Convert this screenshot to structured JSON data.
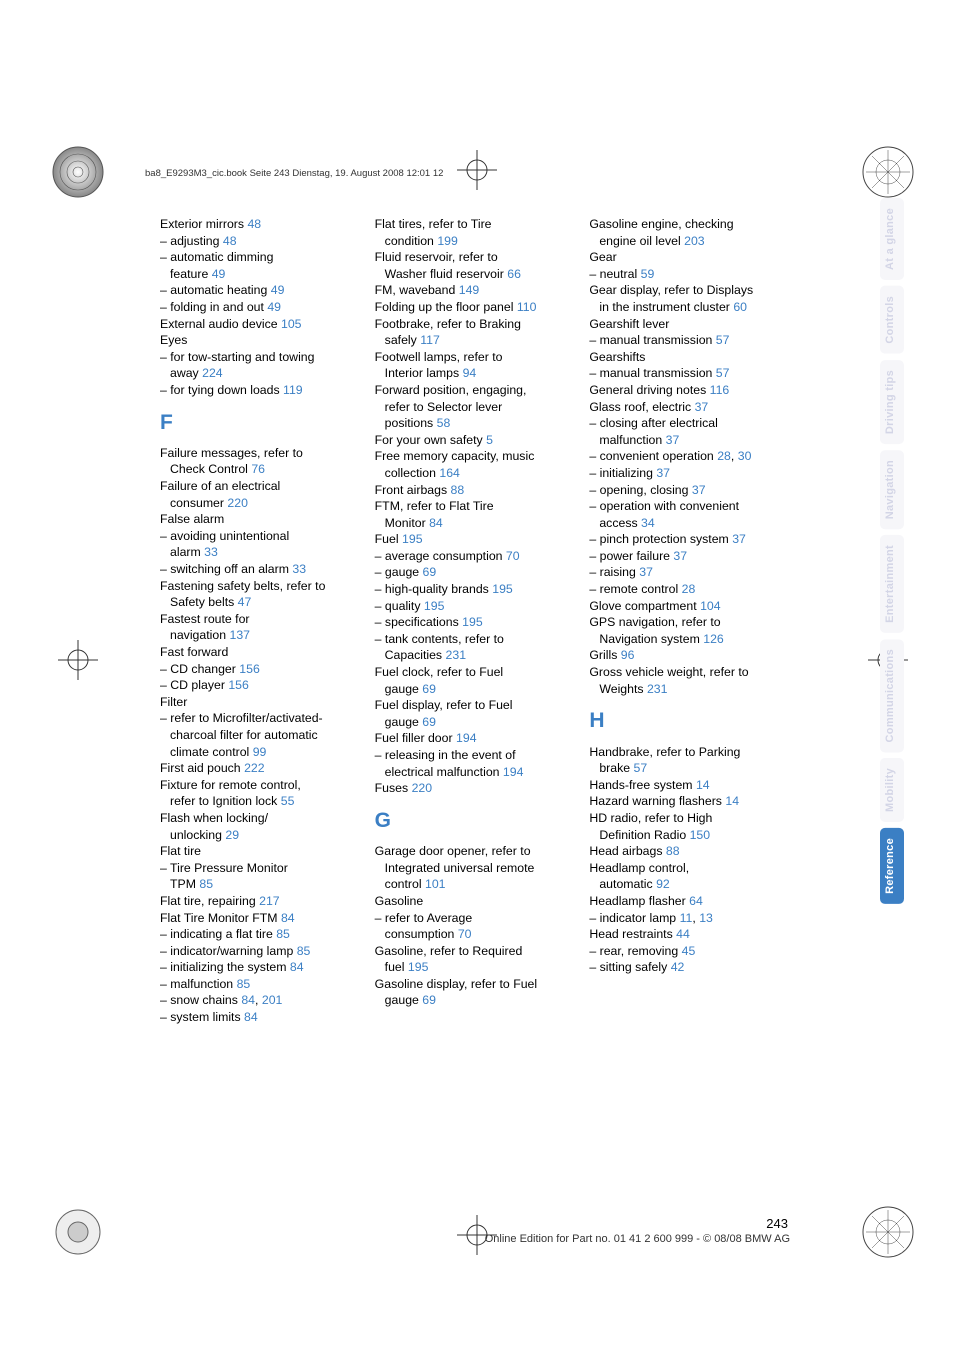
{
  "header": "ba8_E9293M3_cic.book  Seite 243  Dienstag, 19. August 2008  12:01 12",
  "page_number": "243",
  "footer_line": "Online Edition for Part no. 01 41 2 600 999 - © 08/08 BMW AG",
  "sidetabs": [
    {
      "label": "At a glance",
      "active": false
    },
    {
      "label": "Controls",
      "active": false
    },
    {
      "label": "Driving tips",
      "active": false
    },
    {
      "label": "Navigation",
      "active": false
    },
    {
      "label": "Entertainment",
      "active": false
    },
    {
      "label": "Communications",
      "active": false
    },
    {
      "label": "Mobility",
      "active": false
    },
    {
      "label": "Reference",
      "active": true
    }
  ],
  "columns": [
    [
      {
        "t": "e",
        "text": "Exterior mirrors ",
        "pg": "48"
      },
      {
        "t": "s",
        "text": "– adjusting ",
        "pg": "48"
      },
      {
        "t": "s2",
        "line1": "– automatic dimming",
        "line2": "feature ",
        "pg": "49"
      },
      {
        "t": "s",
        "text": "– automatic heating ",
        "pg": "49"
      },
      {
        "t": "s",
        "text": "– folding in and out ",
        "pg": "49"
      },
      {
        "t": "e",
        "text": "External audio device ",
        "pg": "105"
      },
      {
        "t": "e",
        "text": "Eyes"
      },
      {
        "t": "s2",
        "line1": "– for tow-starting and towing",
        "line2": "away ",
        "pg": "224"
      },
      {
        "t": "s",
        "text": "– for tying down loads ",
        "pg": "119"
      },
      {
        "t": "h",
        "text": "F"
      },
      {
        "t": "e2",
        "line1": "Failure messages, refer to",
        "line2": "Check Control ",
        "pg": "76"
      },
      {
        "t": "e2",
        "line1": "Failure of an electrical",
        "line2": "consumer ",
        "pg": "220"
      },
      {
        "t": "e",
        "text": "False alarm"
      },
      {
        "t": "s2",
        "line1": "– avoiding unintentional",
        "line2": "alarm ",
        "pg": "33"
      },
      {
        "t": "s",
        "text": "– switching off an alarm ",
        "pg": "33"
      },
      {
        "t": "e2",
        "line1": "Fastening safety belts, refer to",
        "line2": "Safety belts ",
        "pg": "47"
      },
      {
        "t": "e2",
        "line1": "Fastest route for",
        "line2": "navigation ",
        "pg": "137"
      },
      {
        "t": "e",
        "text": "Fast forward"
      },
      {
        "t": "s",
        "text": "– CD changer ",
        "pg": "156"
      },
      {
        "t": "s",
        "text": "– CD player ",
        "pg": "156"
      },
      {
        "t": "e",
        "text": "Filter"
      },
      {
        "t": "s3",
        "line1": "– refer to Microfilter/activated-",
        "line2": "charcoal filter for automatic",
        "line3": "climate control ",
        "pg": "99"
      },
      {
        "t": "e",
        "text": "First aid pouch ",
        "pg": "222"
      },
      {
        "t": "e2",
        "line1": "Fixture for remote control,",
        "line2": "refer to Ignition lock ",
        "pg": "55"
      },
      {
        "t": "e2",
        "line1": "Flash when locking/",
        "line2": "unlocking ",
        "pg": "29"
      },
      {
        "t": "e",
        "text": "Flat tire"
      },
      {
        "t": "s2",
        "line1": "– Tire Pressure Monitor",
        "line2": "TPM ",
        "pg": "85"
      },
      {
        "t": "e",
        "text": "Flat tire, repairing ",
        "pg": "217"
      },
      {
        "t": "e",
        "text": "Flat Tire Monitor FTM ",
        "pg": "84"
      },
      {
        "t": "s",
        "text": "– indicating a flat tire ",
        "pg": "85"
      },
      {
        "t": "s",
        "text": "– indicator/warning lamp ",
        "pg": "85"
      },
      {
        "t": "s",
        "text": "– initializing the system ",
        "pg": "84"
      },
      {
        "t": "s",
        "text": "– malfunction ",
        "pg": "85"
      },
      {
        "t": "s",
        "text": "– snow chains ",
        "pg": "84",
        "pg2": "201"
      },
      {
        "t": "s",
        "text": "– system limits ",
        "pg": "84"
      }
    ],
    [
      {
        "t": "e2",
        "line1": "Flat tires, refer to Tire",
        "line2": "condition ",
        "pg": "199"
      },
      {
        "t": "e2",
        "line1": "Fluid reservoir, refer to",
        "line2": "Washer fluid reservoir ",
        "pg": "66"
      },
      {
        "t": "e",
        "text": "FM, waveband ",
        "pg": "149"
      },
      {
        "t": "e",
        "text": "Folding up the floor panel ",
        "pg": "110"
      },
      {
        "t": "e2",
        "line1": "Footbrake, refer to Braking",
        "line2": "safely ",
        "pg": "117"
      },
      {
        "t": "e2",
        "line1": "Footwell lamps, refer to",
        "line2": "Interior lamps ",
        "pg": "94"
      },
      {
        "t": "e3",
        "line1": "Forward position, engaging,",
        "line2": "refer to Selector lever",
        "line3": "positions ",
        "pg": "58"
      },
      {
        "t": "e",
        "text": "For your own safety ",
        "pg": "5"
      },
      {
        "t": "e2",
        "line1": "Free memory capacity, music",
        "line2": "collection ",
        "pg": "164"
      },
      {
        "t": "e",
        "text": "Front airbags ",
        "pg": "88"
      },
      {
        "t": "e2",
        "line1": "FTM, refer to Flat Tire",
        "line2": "Monitor ",
        "pg": "84"
      },
      {
        "t": "e",
        "text": "Fuel ",
        "pg": "195"
      },
      {
        "t": "s",
        "text": "– average consumption ",
        "pg": "70"
      },
      {
        "t": "s",
        "text": "– gauge ",
        "pg": "69"
      },
      {
        "t": "s",
        "text": "– high-quality brands ",
        "pg": "195"
      },
      {
        "t": "s",
        "text": "– quality ",
        "pg": "195"
      },
      {
        "t": "s",
        "text": "– specifications ",
        "pg": "195"
      },
      {
        "t": "s2",
        "line1": "– tank contents, refer to",
        "line2": "Capacities ",
        "pg": "231"
      },
      {
        "t": "e2",
        "line1": "Fuel clock, refer to Fuel",
        "line2": "gauge ",
        "pg": "69"
      },
      {
        "t": "e2",
        "line1": "Fuel display, refer to Fuel",
        "line2": "gauge ",
        "pg": "69"
      },
      {
        "t": "e",
        "text": "Fuel filler door ",
        "pg": "194"
      },
      {
        "t": "s2",
        "line1": "– releasing in the event of",
        "line2": "electrical malfunction ",
        "pg": "194"
      },
      {
        "t": "e",
        "text": "Fuses ",
        "pg": "220"
      },
      {
        "t": "h",
        "text": "G"
      },
      {
        "t": "e3",
        "line1": "Garage door opener, refer to",
        "line2": "Integrated universal remote",
        "line3": "control ",
        "pg": "101"
      },
      {
        "t": "e",
        "text": "Gasoline"
      },
      {
        "t": "s2",
        "line1": "– refer to Average",
        "line2": "consumption ",
        "pg": "70"
      },
      {
        "t": "e2",
        "line1": "Gasoline, refer to Required",
        "line2": "fuel ",
        "pg": "195"
      },
      {
        "t": "e2",
        "line1": "Gasoline display, refer to Fuel",
        "line2": "gauge ",
        "pg": "69"
      }
    ],
    [
      {
        "t": "e2",
        "line1": "Gasoline engine, checking",
        "line2": "engine oil level ",
        "pg": "203"
      },
      {
        "t": "e",
        "text": "Gear"
      },
      {
        "t": "s",
        "text": "– neutral ",
        "pg": "59"
      },
      {
        "t": "e2",
        "line1": "Gear display, refer to Displays",
        "line2": "in the instrument cluster ",
        "pg": "60"
      },
      {
        "t": "e",
        "text": "Gearshift lever"
      },
      {
        "t": "s",
        "text": "– manual transmission ",
        "pg": "57"
      },
      {
        "t": "e",
        "text": "Gearshifts"
      },
      {
        "t": "s",
        "text": "– manual transmission ",
        "pg": "57"
      },
      {
        "t": "e",
        "text": "General driving notes ",
        "pg": "116"
      },
      {
        "t": "e",
        "text": "Glass roof, electric ",
        "pg": "37"
      },
      {
        "t": "s2",
        "line1": "– closing after electrical",
        "line2": "malfunction ",
        "pg": "37"
      },
      {
        "t": "s",
        "text": "– convenient operation ",
        "pg": "28",
        "pg2": "30"
      },
      {
        "t": "s",
        "text": "– initializing ",
        "pg": "37"
      },
      {
        "t": "s",
        "text": "– opening, closing ",
        "pg": "37"
      },
      {
        "t": "s2",
        "line1": "– operation with convenient",
        "line2": "access ",
        "pg": "34"
      },
      {
        "t": "s",
        "text": "– pinch protection system ",
        "pg": "37"
      },
      {
        "t": "s",
        "text": "– power failure ",
        "pg": "37"
      },
      {
        "t": "s",
        "text": "– raising ",
        "pg": "37"
      },
      {
        "t": "s",
        "text": "– remote control ",
        "pg": "28"
      },
      {
        "t": "e",
        "text": "Glove compartment ",
        "pg": "104"
      },
      {
        "t": "e2",
        "line1": "GPS navigation, refer to",
        "line2": "Navigation system ",
        "pg": "126"
      },
      {
        "t": "e",
        "text": "Grills ",
        "pg": "96"
      },
      {
        "t": "e2",
        "line1": "Gross vehicle weight, refer to",
        "line2": "Weights ",
        "pg": "231"
      },
      {
        "t": "h",
        "text": "H"
      },
      {
        "t": "e2",
        "line1": "Handbrake, refer to Parking",
        "line2": "brake ",
        "pg": "57"
      },
      {
        "t": "e",
        "text": "Hands-free system ",
        "pg": "14"
      },
      {
        "t": "e",
        "text": "Hazard warning flashers ",
        "pg": "14"
      },
      {
        "t": "e2",
        "line1": "HD radio, refer to High",
        "line2": "Definition Radio ",
        "pg": "150"
      },
      {
        "t": "e",
        "text": "Head airbags ",
        "pg": "88"
      },
      {
        "t": "e2",
        "line1": "Headlamp control,",
        "line2": "automatic ",
        "pg": "92"
      },
      {
        "t": "e",
        "text": "Headlamp flasher ",
        "pg": "64"
      },
      {
        "t": "s",
        "text": "– indicator lamp ",
        "pg": "11",
        "pg2": "13"
      },
      {
        "t": "e",
        "text": "Head restraints ",
        "pg": "44"
      },
      {
        "t": "s",
        "text": "– rear, removing ",
        "pg": "45"
      },
      {
        "t": "s",
        "text": "– sitting safely ",
        "pg": "42"
      }
    ]
  ]
}
